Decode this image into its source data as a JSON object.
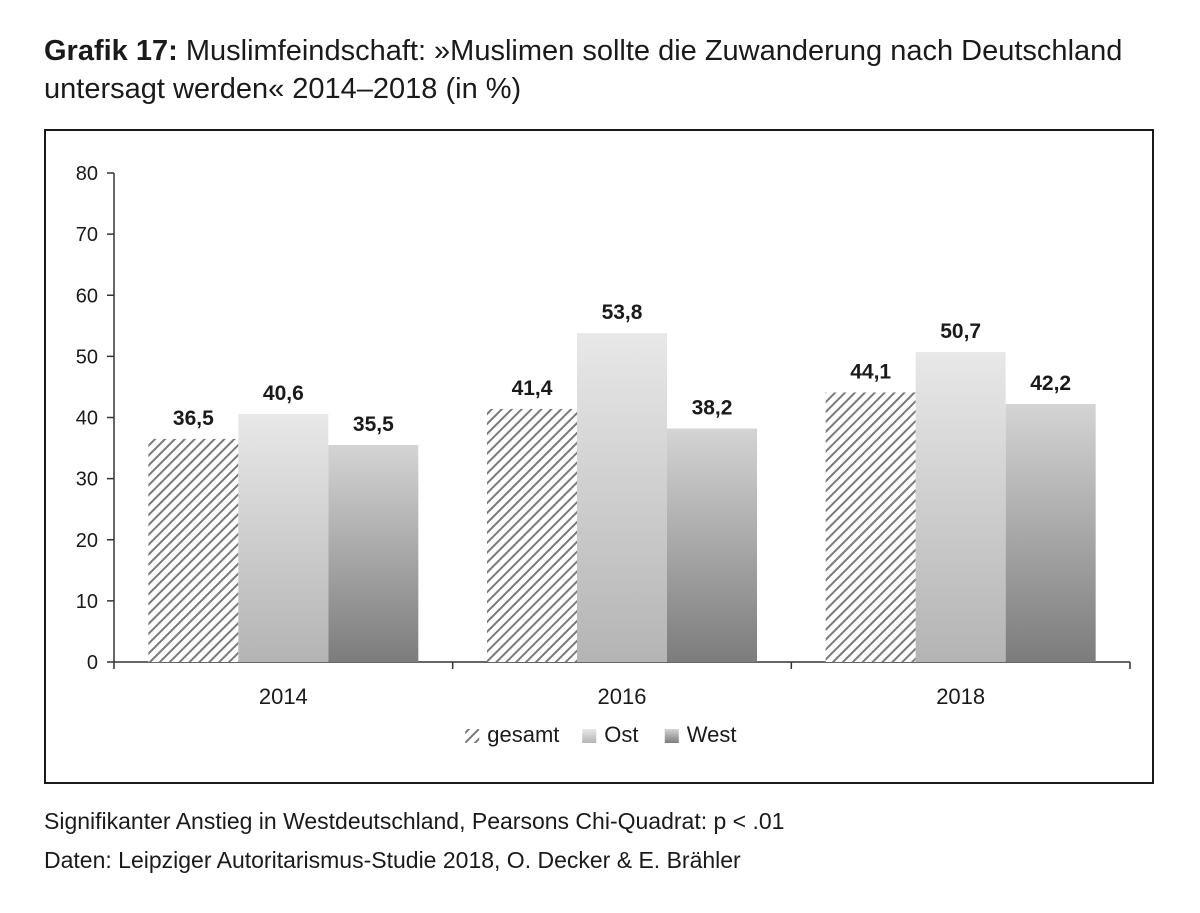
{
  "header": {
    "title_prefix": "Grafik 17:",
    "title_text": " Muslimfeindschaft: »Muslimen sollte die Zuwanderung nach Deutschland untersagt werden« 2014–2018 (in %)"
  },
  "footer": {
    "note": "Signifikanter Anstieg in Westdeutschland, Pearsons Chi-Quadrat: p < .01",
    "source": "Daten: Leipziger Autoritarismus-Studie 2018, O. Decker & E. Brähler"
  },
  "chart_data": {
    "type": "bar",
    "categories": [
      "2014",
      "2016",
      "2018"
    ],
    "series": [
      {
        "name": "gesamt",
        "values": [
          36.5,
          41.4,
          44.1
        ],
        "labels": [
          "36,5",
          "41,4",
          "44,1"
        ],
        "fill": "hatch"
      },
      {
        "name": "Ost",
        "values": [
          40.6,
          53.8,
          50.7
        ],
        "labels": [
          "40,6",
          "53,8",
          "50,7"
        ],
        "fill": "light-gradient"
      },
      {
        "name": "West",
        "values": [
          35.5,
          38.2,
          42.2
        ],
        "labels": [
          "35,5",
          "38,2",
          "42,2"
        ],
        "fill": "dark-gradient"
      }
    ],
    "ylim": [
      0,
      80
    ],
    "yticks": [
      0,
      10,
      20,
      30,
      40,
      50,
      60,
      70,
      80
    ],
    "xlabel": "",
    "ylabel": "",
    "grid": false,
    "legend_position": "bottom",
    "colors": {
      "hatch_line": "#7a7a7a",
      "light_top": "#e8e8e8",
      "light_bottom": "#b4b4b4",
      "dark_top": "#d4d4d4",
      "dark_bottom": "#7c7c7c",
      "axis": "#333333"
    }
  }
}
